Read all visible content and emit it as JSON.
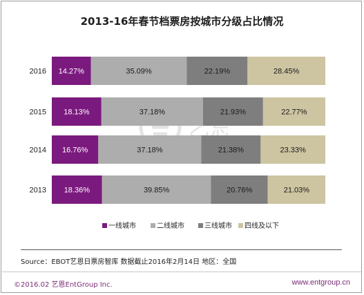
{
  "chart_data": {
    "type": "bar",
    "orientation": "horizontal",
    "stacked": true,
    "percent": true,
    "title": "2013-16年春节档票房按城市分级占比情况",
    "categories": [
      "2016",
      "2015",
      "2014",
      "2013"
    ],
    "series": [
      {
        "name": "一线城市",
        "color": "#7b1a7e",
        "values": [
          14.27,
          18.13,
          16.76,
          18.36
        ],
        "labels": [
          "14.27%",
          "18.13%",
          "16.76%",
          "18.36%"
        ]
      },
      {
        "name": "二线城市",
        "color": "#adadad",
        "values": [
          35.09,
          37.18,
          37.18,
          39.85
        ],
        "labels": [
          "35.09%",
          "37.18%",
          "37.18%",
          "39.85%"
        ]
      },
      {
        "name": "三线城市",
        "color": "#7e7e7e",
        "values": [
          22.19,
          21.93,
          21.38,
          20.76
        ],
        "labels": [
          "22.19%",
          "21.93%",
          "21.38%",
          "20.76%"
        ]
      },
      {
        "name": "四线及以下",
        "color": "#cdc4a1",
        "values": [
          28.45,
          22.77,
          23.33,
          21.03
        ],
        "labels": [
          "28.45%",
          "22.77%",
          "23.33%",
          "21.03%"
        ]
      }
    ],
    "xlim": [
      0,
      100
    ],
    "grid": false,
    "legend_position": "bottom"
  },
  "source": "Source：EBOT艺恩日票房智库 数据截止2016年2月14日 地区：全国",
  "copyright": "©2016.02 艺恩EntGroup Inc.",
  "website": "www.entgroup.cn",
  "brand_color": "#7a2a76"
}
